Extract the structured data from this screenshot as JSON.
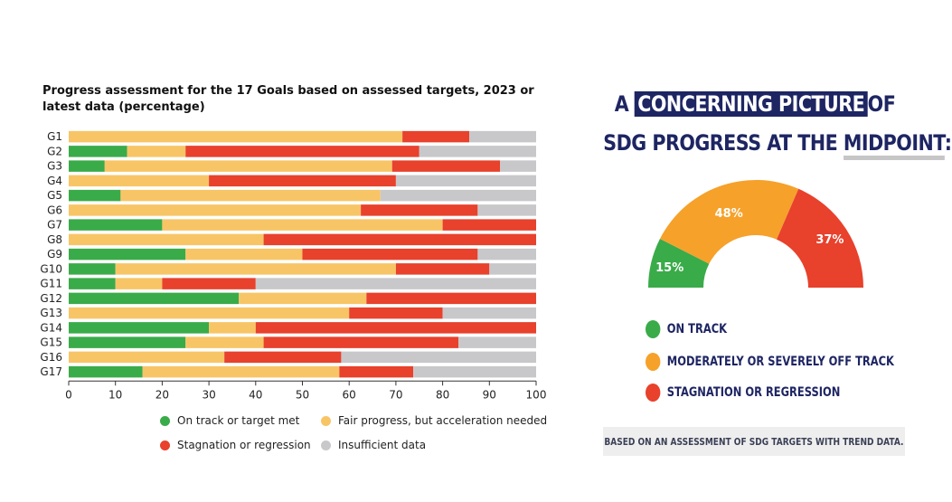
{
  "left_panel": {
    "title": "Progress assessment for the 17 Goals based on assessed targets, 2023 or latest data (percentage)",
    "legend": [
      {
        "label": "On track or target met",
        "color": "#3aab49"
      },
      {
        "label": "Fair progress, but acceleration needed",
        "color": "#f8c566"
      },
      {
        "label": "Stagnation or regression",
        "color": "#e8412c"
      },
      {
        "label": "Insufficient data",
        "color": "#c8c8ca"
      }
    ]
  },
  "chart_data": [
    {
      "type": "bar",
      "orientation": "horizontal",
      "stacked": true,
      "title": "Progress assessment for the 17 Goals based on assessed targets, 2023 or latest data (percentage)",
      "categories": [
        "G1",
        "G2",
        "G3",
        "G4",
        "G5",
        "G6",
        "G7",
        "G8",
        "G9",
        "G10",
        "G11",
        "G12",
        "G13",
        "G14",
        "G15",
        "G16",
        "G17"
      ],
      "xlim": [
        0,
        100
      ],
      "xticks": [
        0,
        10,
        20,
        30,
        40,
        50,
        60,
        70,
        80,
        90,
        100
      ],
      "grid": false,
      "legend_position": "bottom",
      "series": [
        {
          "name": "On track or target met",
          "color": "#3aab49",
          "values": [
            0,
            12.5,
            7.7,
            0,
            11.1,
            0,
            20,
            0,
            25,
            10,
            10,
            36.4,
            0,
            30,
            25,
            0,
            15.8
          ]
        },
        {
          "name": "Fair progress, but acceleration needed",
          "color": "#f8c566",
          "values": [
            71.4,
            12.5,
            61.5,
            30,
            55.6,
            62.5,
            60,
            41.7,
            25,
            60,
            10,
            27.3,
            60,
            10,
            16.7,
            33.3,
            42.1
          ]
        },
        {
          "name": "Stagnation or regression",
          "color": "#e8412c",
          "values": [
            14.3,
            50,
            23.1,
            40,
            0,
            25,
            20,
            58.3,
            37.5,
            20,
            20,
            36.3,
            20,
            60,
            41.7,
            25,
            15.8
          ]
        },
        {
          "name": "Insufficient data",
          "color": "#c8c8ca",
          "values": [
            14.3,
            25,
            7.7,
            30,
            33.3,
            12.5,
            0,
            0,
            12.5,
            10,
            60,
            0,
            20,
            0,
            16.6,
            41.7,
            26.3
          ]
        }
      ]
    },
    {
      "type": "pie",
      "variant": "semi-donut",
      "categories": [
        "ON TRACK",
        "MODERATELY OR SEVERELY OFF TRACK",
        "STAGNATION OR REGRESSION"
      ],
      "values": [
        15,
        48,
        37
      ],
      "labels": [
        "15%",
        "48%",
        "37%"
      ],
      "colors": [
        "#3aab49",
        "#f6a12a",
        "#e8412c"
      ],
      "legend_position": "bottom"
    }
  ],
  "right_panel": {
    "headline": {
      "line1_pre": "A",
      "line1_box": "CONCERNING PICTURE",
      "line1_post": "OF",
      "line2_pre": "SDG PROGRESS AT THE",
      "line2_underlined": "MIDPOINT",
      "line2_post": ":"
    },
    "key": [
      {
        "label": "ON TRACK",
        "color": "#3aab49"
      },
      {
        "label": "MODERATELY OR SEVERELY OFF TRACK",
        "color": "#f6a12a"
      },
      {
        "label": "STAGNATION OR REGRESSION",
        "color": "#e8412c"
      }
    ],
    "note": "BASED ON AN ASSESSMENT OF SDG TARGETS WITH TREND DATA."
  }
}
